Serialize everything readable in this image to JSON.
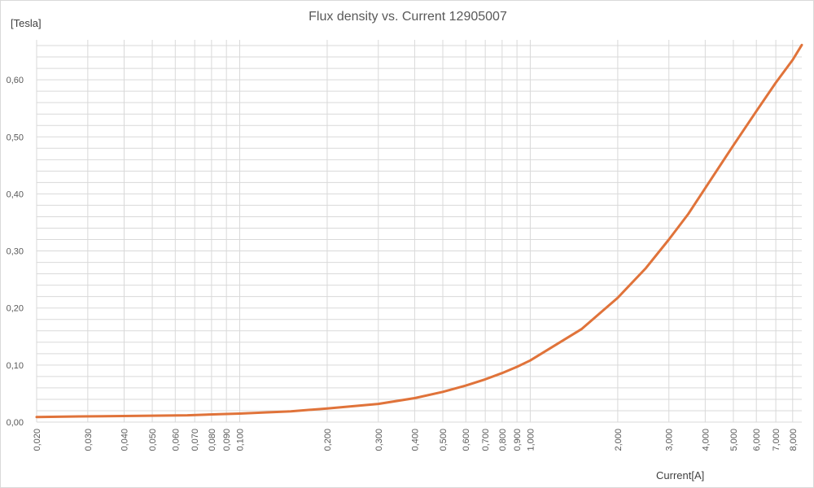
{
  "chart_data": {
    "type": "line",
    "title": "Flux density vs. Current 12905007",
    "xlabel": "Current[A]",
    "ylabel": "[Tesla]",
    "x_scale": "log",
    "xlim": [
      0.02,
      8.6
    ],
    "ylim": [
      0,
      0.67
    ],
    "grid": true,
    "legend": "none",
    "line_color": "#E0733A",
    "x_ticks": [
      0.02,
      0.03,
      0.04,
      0.05,
      0.06,
      0.07,
      0.08,
      0.09,
      0.1,
      0.2,
      0.3,
      0.4,
      0.5,
      0.6,
      0.7,
      0.8,
      0.9,
      1,
      2,
      3,
      4,
      5,
      6,
      7,
      8
    ],
    "x_tick_labels": [
      "0,020",
      "0,030",
      "0,040",
      "0,050",
      "0,060",
      "0,070",
      "0,080",
      "0,090",
      "0,100",
      "0,200",
      "0,300",
      "0,400",
      "0,500",
      "0,600",
      "0,700",
      "0,800",
      "0,900",
      "1,000",
      "2,000",
      "3,000",
      "4,000",
      "5,000",
      "6,000",
      "7,000",
      "8,000"
    ],
    "y_ticks": [
      0,
      0.1,
      0.2,
      0.3,
      0.4,
      0.5,
      0.6
    ],
    "y_tick_labels": [
      "0,00",
      "0,10",
      "0,20",
      "0,30",
      "0,40",
      "0,50",
      "0,60"
    ],
    "series": [
      {
        "x": [
          0.02,
          0.028,
          0.046,
          0.066,
          0.085,
          0.1,
          0.15,
          0.2,
          0.3,
          0.4,
          0.5,
          0.6,
          0.7,
          0.8,
          0.9,
          1.0,
          1.5,
          2.0,
          2.5,
          3.0,
          3.5,
          4.0,
          5.0,
          6.0,
          7.0,
          8.0,
          8.6
        ],
        "y": [
          0.009,
          0.01,
          0.011,
          0.012,
          0.014,
          0.015,
          0.019,
          0.024,
          0.032,
          0.042,
          0.053,
          0.064,
          0.075,
          0.086,
          0.097,
          0.108,
          0.163,
          0.218,
          0.27,
          0.32,
          0.365,
          0.41,
          0.485,
          0.545,
          0.595,
          0.635,
          0.661
        ]
      }
    ]
  }
}
